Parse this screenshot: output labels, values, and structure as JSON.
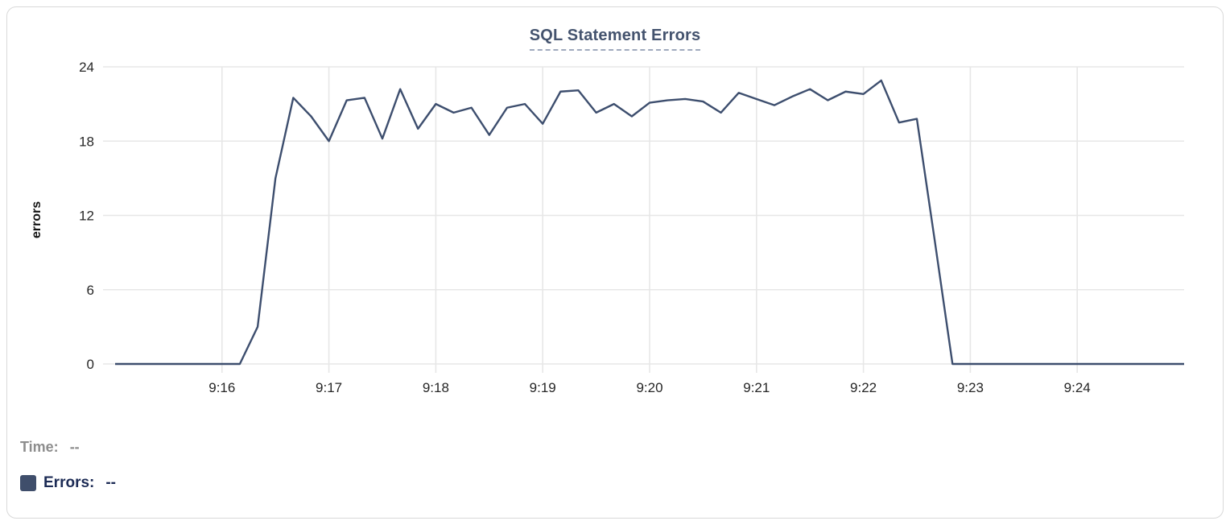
{
  "chart_data": {
    "type": "line",
    "title": "SQL Statement Errors",
    "xlabel": "",
    "ylabel": "errors",
    "ylim": [
      0,
      24
    ],
    "yticks": [
      0,
      6,
      12,
      18,
      24
    ],
    "x_start": "9:15:00",
    "x_end": "9:25:00",
    "xticks": [
      "9:16",
      "9:17",
      "9:18",
      "9:19",
      "9:20",
      "9:21",
      "9:22",
      "9:23",
      "9:24"
    ],
    "grid": true,
    "legend_position": "bottom-left",
    "series": [
      {
        "name": "Errors",
        "color": "#3d4e6e",
        "x": [
          "9:15:00",
          "9:15:10",
          "9:15:20",
          "9:15:30",
          "9:15:40",
          "9:15:50",
          "9:16:00",
          "9:16:10",
          "9:16:20",
          "9:16:30",
          "9:16:40",
          "9:16:50",
          "9:17:00",
          "9:17:10",
          "9:17:20",
          "9:17:30",
          "9:17:40",
          "9:17:50",
          "9:18:00",
          "9:18:10",
          "9:18:20",
          "9:18:30",
          "9:18:40",
          "9:18:50",
          "9:19:00",
          "9:19:10",
          "9:19:20",
          "9:19:30",
          "9:19:40",
          "9:19:50",
          "9:20:00",
          "9:20:10",
          "9:20:20",
          "9:20:30",
          "9:20:40",
          "9:20:50",
          "9:21:00",
          "9:21:10",
          "9:21:20",
          "9:21:30",
          "9:21:40",
          "9:21:50",
          "9:22:00",
          "9:22:10",
          "9:22:20",
          "9:22:30",
          "9:22:40",
          "9:22:50",
          "9:23:00",
          "9:23:10",
          "9:23:20",
          "9:23:30",
          "9:23:40",
          "9:23:50",
          "9:24:00",
          "9:24:10",
          "9:24:20",
          "9:24:30",
          "9:24:40",
          "9:24:50",
          "9:25:00"
        ],
        "values": [
          0,
          0,
          0,
          0,
          0,
          0,
          0,
          0,
          3,
          15,
          21.5,
          20,
          18,
          21.3,
          21.5,
          18.2,
          22.2,
          19,
          21,
          20.3,
          20.7,
          18.5,
          20.7,
          21,
          19.4,
          22,
          22.1,
          20.3,
          21,
          20,
          21.1,
          21.3,
          21.4,
          21.2,
          20.3,
          21.9,
          21.4,
          20.9,
          21.6,
          22.2,
          21.3,
          22,
          21.8,
          22.9,
          19.5,
          19.8,
          10,
          0,
          0,
          0,
          0,
          0,
          0,
          0,
          0,
          0,
          0,
          0,
          0,
          0,
          0
        ]
      }
    ]
  },
  "legend": {
    "time_label": "Time:",
    "time_value": "--",
    "errors_label": "Errors:",
    "errors_value": "--",
    "swatch_color": "#3f4e6b"
  },
  "colors": {
    "line": "#3d4e6e",
    "grid": "#e7e7e7",
    "title": "#44536e",
    "title_underline": "#9fa9bd",
    "tick_text": "#262626",
    "axis_label": "#141414",
    "time_text": "#8d8d8d",
    "errors_text": "#1c2b55",
    "card_border": "#d9d9d9",
    "background": "#ffffff"
  }
}
